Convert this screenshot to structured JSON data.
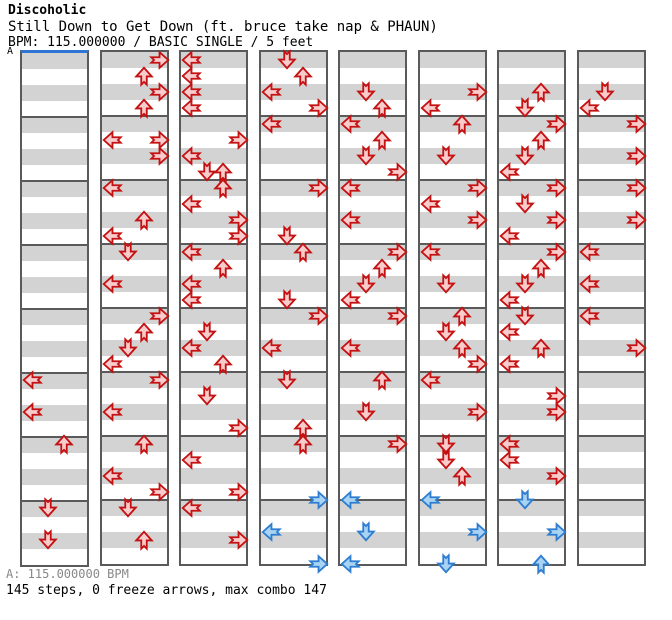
{
  "header": {
    "artist": "Discoholic",
    "title": "Still Down to Get Down (ft. bruce take nap & PHAUN)",
    "meta": "BPM: 115.000000 / BASIC SINGLE / 5 feet"
  },
  "marker": {
    "label": "A",
    "line_color": "#2e75d4"
  },
  "footer": {
    "bpm_line": "A: 115.000000 BPM",
    "stats_line": "145 steps, 0 freeze arrows, max combo 147"
  },
  "colors": {
    "row_shade": "#d3d3d3",
    "grid_line": "#5a5a5a",
    "quarter_fill": "#f8cccc",
    "quarter_stroke": "#c41111",
    "eighth_fill": "#a9d3f2",
    "eighth_stroke": "#2e7dd1",
    "marker_blue": "#2e75d4",
    "footer_gray": "#888888"
  },
  "chart_data": {
    "type": "scatter",
    "subtype": "ddr-step-chart",
    "title": "Still Down to Get Down (ft. bruce take nap & PHAUN)",
    "difficulty": "BASIC SINGLE",
    "feet": 5,
    "bpm": "115.000000",
    "steps": 145,
    "freeze_arrows": 0,
    "max_combo": 147,
    "lanes": [
      "left",
      "down",
      "up",
      "right"
    ],
    "dirs": {
      "L": "left",
      "D": "down",
      "U": "up",
      "R": "right"
    },
    "columns": 8,
    "measures_per_column": 8,
    "rows_per_measure": 4,
    "row_unit": "quarter note rows; x.5 rows are eighth-note offbeats",
    "note_colors": {
      "quarter": "red",
      "eighth": "blue"
    },
    "note_columns": [
      [
        [
          20,
          "L"
        ],
        [
          22,
          "L"
        ],
        [
          24,
          "U"
        ],
        [
          28,
          "D"
        ],
        [
          30,
          "D"
        ]
      ],
      [
        [
          0,
          "R"
        ],
        [
          1,
          "U"
        ],
        [
          2,
          "R"
        ],
        [
          3,
          "U"
        ],
        [
          5,
          "L"
        ],
        [
          5,
          "R"
        ],
        [
          6,
          "R"
        ],
        [
          8,
          "L"
        ],
        [
          10,
          "U"
        ],
        [
          11,
          "L"
        ],
        [
          12,
          "D"
        ],
        [
          14,
          "L"
        ],
        [
          16,
          "R"
        ],
        [
          17,
          "U"
        ],
        [
          18,
          "D"
        ],
        [
          19,
          "L"
        ],
        [
          20,
          "R"
        ],
        [
          22,
          "L"
        ],
        [
          24,
          "U"
        ],
        [
          26,
          "L"
        ],
        [
          27,
          "R"
        ],
        [
          28,
          "D"
        ],
        [
          30,
          "U"
        ]
      ],
      [
        [
          0,
          "L"
        ],
        [
          1,
          "L"
        ],
        [
          2,
          "L"
        ],
        [
          3,
          "L"
        ],
        [
          5,
          "R"
        ],
        [
          6,
          "L"
        ],
        [
          7,
          "D"
        ],
        [
          7,
          "U"
        ],
        [
          8,
          "U"
        ],
        [
          9,
          "L"
        ],
        [
          10,
          "R"
        ],
        [
          11,
          "R"
        ],
        [
          12,
          "L"
        ],
        [
          13,
          "U"
        ],
        [
          14,
          "L"
        ],
        [
          15,
          "L"
        ],
        [
          17,
          "D"
        ],
        [
          18,
          "L"
        ],
        [
          19,
          "U"
        ],
        [
          21,
          "D"
        ],
        [
          23,
          "R"
        ],
        [
          25,
          "L"
        ],
        [
          27,
          "R"
        ],
        [
          28,
          "L"
        ],
        [
          30,
          "R"
        ]
      ],
      [
        [
          0,
          "D"
        ],
        [
          1,
          "U"
        ],
        [
          2,
          "L"
        ],
        [
          3,
          "R"
        ],
        [
          4,
          "L"
        ],
        [
          8,
          "R"
        ],
        [
          11,
          "D"
        ],
        [
          12,
          "U"
        ],
        [
          15,
          "D"
        ],
        [
          16,
          "R"
        ],
        [
          18,
          "L"
        ],
        [
          20,
          "D"
        ],
        [
          23,
          "U"
        ],
        [
          24,
          "U"
        ],
        [
          27.5,
          "R"
        ],
        [
          29.5,
          "L"
        ],
        [
          31.5,
          "R"
        ]
      ],
      [
        [
          2,
          "D"
        ],
        [
          3,
          "U"
        ],
        [
          4,
          "L"
        ],
        [
          5,
          "U"
        ],
        [
          6,
          "D"
        ],
        [
          7,
          "R"
        ],
        [
          8,
          "L"
        ],
        [
          10,
          "L"
        ],
        [
          12,
          "R"
        ],
        [
          13,
          "U"
        ],
        [
          14,
          "D"
        ],
        [
          15,
          "L"
        ],
        [
          16,
          "R"
        ],
        [
          18,
          "L"
        ],
        [
          20,
          "U"
        ],
        [
          22,
          "D"
        ],
        [
          24,
          "R"
        ],
        [
          27.5,
          "L"
        ],
        [
          29.5,
          "D"
        ],
        [
          31.5,
          "L"
        ]
      ],
      [
        [
          2,
          "R"
        ],
        [
          3,
          "L"
        ],
        [
          4,
          "U"
        ],
        [
          6,
          "D"
        ],
        [
          8,
          "R"
        ],
        [
          9,
          "L"
        ],
        [
          10,
          "R"
        ],
        [
          12,
          "L"
        ],
        [
          14,
          "D"
        ],
        [
          16,
          "U"
        ],
        [
          17,
          "D"
        ],
        [
          18,
          "U"
        ],
        [
          19,
          "R"
        ],
        [
          20,
          "L"
        ],
        [
          22,
          "R"
        ],
        [
          24,
          "D"
        ],
        [
          25,
          "D"
        ],
        [
          26,
          "U"
        ],
        [
          27.5,
          "L"
        ],
        [
          29.5,
          "R"
        ],
        [
          31.5,
          "D"
        ]
      ],
      [
        [
          2,
          "U"
        ],
        [
          3,
          "D"
        ],
        [
          4,
          "R"
        ],
        [
          5,
          "U"
        ],
        [
          6,
          "D"
        ],
        [
          7,
          "L"
        ],
        [
          8,
          "R"
        ],
        [
          9,
          "D"
        ],
        [
          10,
          "R"
        ],
        [
          11,
          "L"
        ],
        [
          12,
          "R"
        ],
        [
          13,
          "U"
        ],
        [
          14,
          "D"
        ],
        [
          15,
          "L"
        ],
        [
          16,
          "D"
        ],
        [
          17,
          "L"
        ],
        [
          18,
          "U"
        ],
        [
          19,
          "L"
        ],
        [
          21,
          "R"
        ],
        [
          22,
          "R"
        ],
        [
          24,
          "L"
        ],
        [
          25,
          "L"
        ],
        [
          26,
          "R"
        ],
        [
          27.5,
          "D"
        ],
        [
          29.5,
          "R"
        ],
        [
          31.5,
          "U"
        ]
      ],
      [
        [
          2,
          "D"
        ],
        [
          3,
          "L"
        ],
        [
          4,
          "R"
        ],
        [
          6,
          "R"
        ],
        [
          8,
          "R"
        ],
        [
          10,
          "R"
        ],
        [
          12,
          "L"
        ],
        [
          14,
          "L"
        ],
        [
          16,
          "L"
        ],
        [
          18,
          "R"
        ]
      ]
    ]
  }
}
